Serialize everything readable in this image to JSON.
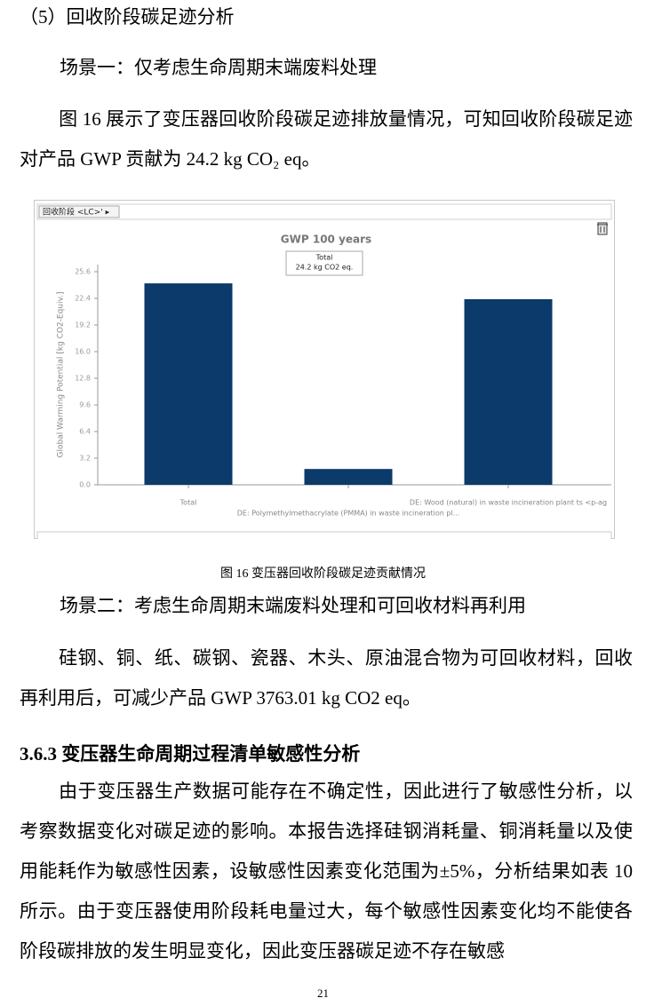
{
  "document": {
    "section_title": "（5）回收阶段碳足迹分析",
    "scenario1": "场景一：仅考虑生命周期末端废料处理",
    "paragraph1": "图 16 展示了变压器回收阶段碳足迹排放量情况，可知回收阶段碳足迹对产品 GWP 贡献为 24.2 kg CO₂ eq。",
    "panel_tab": "回收阶段 <LC>' ▸",
    "caption": "图 16  变压器回收阶段碳足迹贡献情况",
    "scenario2": "场景二：考虑生命周期末端废料处理和可回收材料再利用",
    "paragraph2": "硅钢、铜、纸、碳钢、瓷器、木头、原油混合物为可回收材料，回收再利用后，可减少产品 GWP 3763.01 kg CO2 eq。",
    "heading": "3.6.3  变压器生命周期过程清单敏感性分析",
    "paragraph3": "由于变压器生产数据可能存在不确定性，因此进行了敏感性分析，以考察数据变化对碳足迹的影响。本报告选择硅钢消耗量、铜消耗量以及使用能耗作为敏感性因素，设敏感性因素变化范围为±5%，分析结果如表 10 所示。由于变压器使用阶段耗电量过大，每个敏感性因素变化均不能使各阶段碳排放的发生明显变化，因此变压器碳足迹不存在敏感",
    "page_number": 21
  },
  "chart_data": {
    "type": "bar",
    "title": "GWP 100 years",
    "y_label": "Global Warming Potential [kg CO2-Equiv.]",
    "categories": [
      "Total",
      "DE: Polymethylmethacrylate (PMMA) in waste incineration pl...",
      "DE: Wood (natural) in waste incineration plant ts <p-ag"
    ],
    "values": [
      24.2,
      1.9,
      22.3
    ],
    "color": "#0b3a6b",
    "ylim": [
      0,
      25.6
    ],
    "yticks": [
      {
        "value": 0,
        "label": "0.0"
      },
      3.2,
      {
        "value": 6.4,
        "label": "6.4"
      },
      {
        "value": 9.6,
        "label": "9.6"
      },
      {
        "value": 12.8,
        "label": "12.8"
      },
      {
        "value": 16,
        "label": "16.0"
      },
      19.2,
      22.4,
      25.6
    ],
    "annotations": [
      "Total",
      "24.2 kg CO2 eq."
    ]
  }
}
